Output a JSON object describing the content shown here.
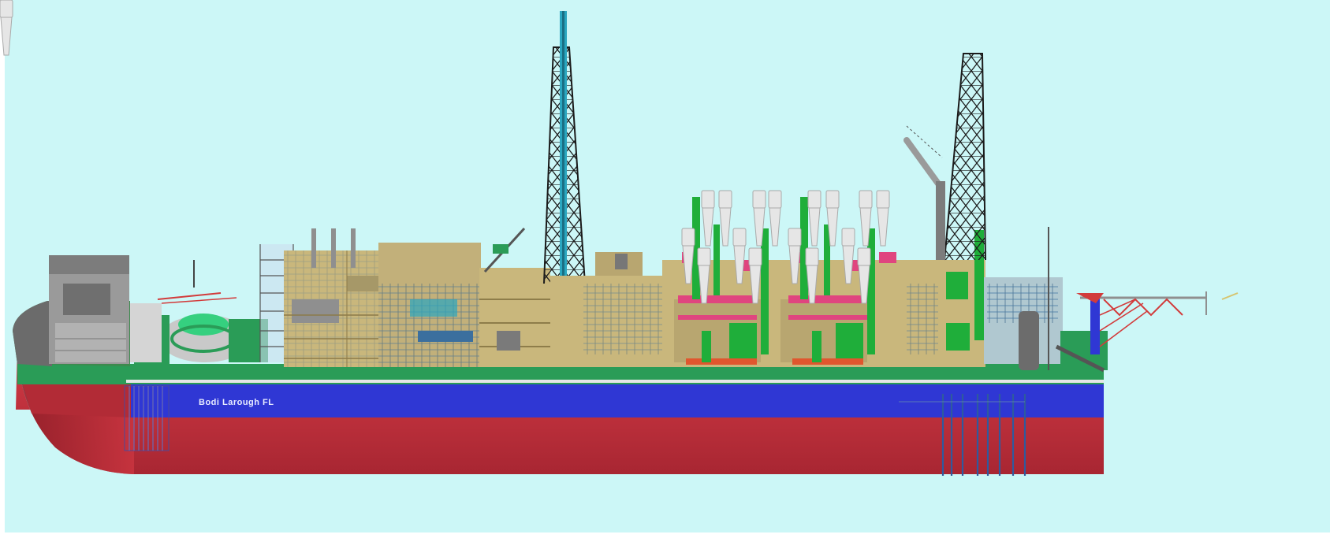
{
  "vessel": {
    "hull_name": "Bodi Larough FL"
  },
  "colors": {
    "sky": "#ccf7f7",
    "hull_red": "#c8343f",
    "hull_blue": "#2f37d4",
    "deck_green": "#2a9c57",
    "module_tan": "#c9b77c",
    "module_grey": "#8f8f8f",
    "equipment_green": "#1fae3a",
    "equipment_pink": "#e0457f",
    "tower_teal": "#2aa7c0",
    "frame_black": "#1b1b1b"
  }
}
